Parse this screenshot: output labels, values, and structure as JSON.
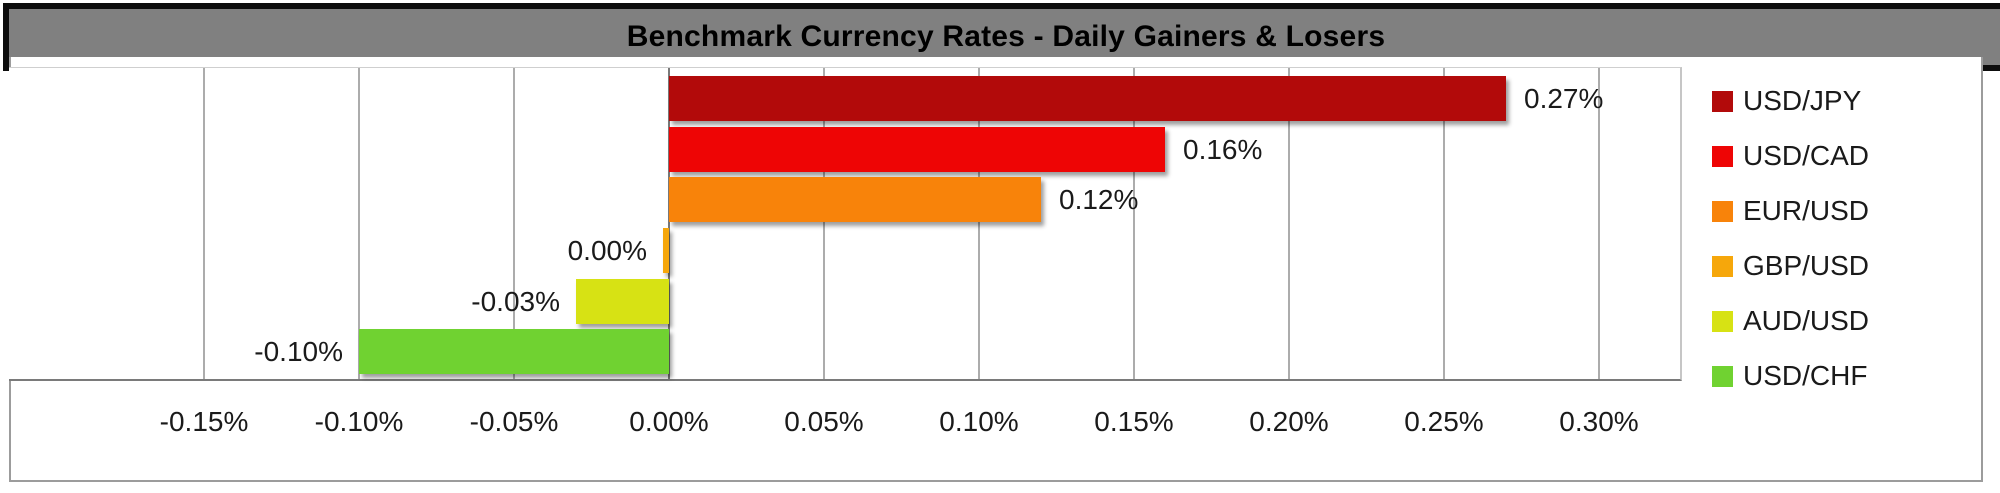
{
  "title_bar": {
    "text": "Benchmark Currency Rates - Daily Gainers & Losers",
    "bg_color": "#808080",
    "border_color": "#0d0d0d"
  },
  "chart_data": {
    "type": "bar",
    "orientation": "horizontal",
    "title": "Benchmark Currency Rates - Daily Gainers & Losers",
    "categories": [
      "USD/JPY",
      "USD/CAD",
      "EUR/USD",
      "GBP/USD",
      "AUD/USD",
      "USD/CHF"
    ],
    "values": [
      0.27,
      0.16,
      0.12,
      0.0,
      -0.03,
      -0.1
    ],
    "value_labels": [
      "0.27%",
      "0.16%",
      "0.12%",
      "0.00%",
      "-0.03%",
      "-0.10%"
    ],
    "bar_colors": [
      "#b20a0a",
      "#ee0505",
      "#f8830a",
      "#f6a70b",
      "#d7e214",
      "#70d231"
    ],
    "x_ticks": [
      -0.15,
      -0.1,
      -0.05,
      0,
      0.05,
      0.1,
      0.15,
      0.2,
      0.25,
      0.3
    ],
    "x_tick_labels": [
      "-0.15%",
      "-0.10%",
      "-0.05%",
      "0.00%",
      "0.05%",
      "0.10%",
      "0.15%",
      "0.20%",
      "0.25%",
      "0.30%"
    ],
    "xlim": [
      -0.213,
      0.327
    ],
    "grid": true,
    "legend_position": "right",
    "legend": [
      {
        "label": "USD/JPY",
        "color": "#b20a0a"
      },
      {
        "label": "USD/CAD",
        "color": "#ee0505"
      },
      {
        "label": "EUR/USD",
        "color": "#f8830a"
      },
      {
        "label": "GBP/USD",
        "color": "#f6a70b"
      },
      {
        "label": "AUD/USD",
        "color": "#d7e214"
      },
      {
        "label": "USD/CHF",
        "color": "#70d231"
      }
    ]
  },
  "colors": {
    "gridline": "#acacac",
    "zero_axis": "#7a7a7a",
    "axis_line": "#7a7a7a",
    "plot_border": "#c6c6c6",
    "chart_border": "#9c9c9c",
    "label_text": "#1a1a1a"
  }
}
